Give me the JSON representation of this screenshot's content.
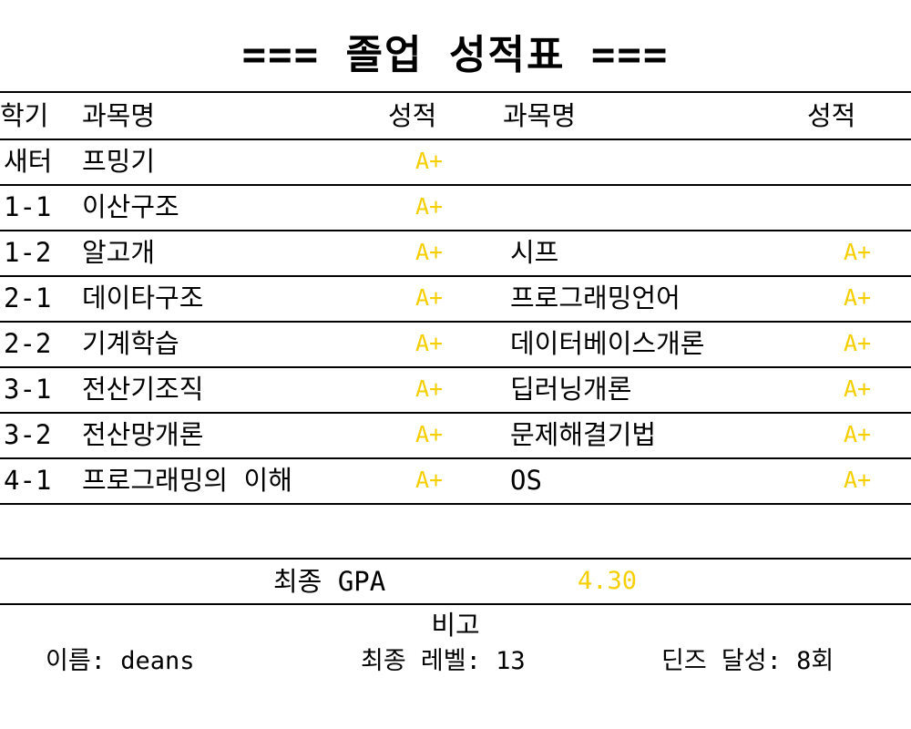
{
  "title": "=== 졸업 성적표 ===",
  "table": {
    "headers": {
      "semester": "학기",
      "subject1": "과목명",
      "grade1": "성적",
      "subject2": "과목명",
      "grade2": "성적"
    },
    "rows": [
      {
        "semester": "새터",
        "subject1": "프밍기",
        "grade1": "A+",
        "subject2": "",
        "grade2": ""
      },
      {
        "semester": "1-1",
        "subject1": "이산구조",
        "grade1": "A+",
        "subject2": "",
        "grade2": ""
      },
      {
        "semester": "1-2",
        "subject1": "알고개",
        "grade1": "A+",
        "subject2": "시프",
        "grade2": "A+"
      },
      {
        "semester": "2-1",
        "subject1": "데이타구조",
        "grade1": "A+",
        "subject2": "프로그래밍언어",
        "grade2": "A+"
      },
      {
        "semester": "2-2",
        "subject1": "기계학습",
        "grade1": "A+",
        "subject2": "데이터베이스개론",
        "grade2": "A+"
      },
      {
        "semester": "3-1",
        "subject1": "전산기조직",
        "grade1": "A+",
        "subject2": "딥러닝개론",
        "grade2": "A+"
      },
      {
        "semester": "3-2",
        "subject1": "전산망개론",
        "grade1": "A+",
        "subject2": "문제해결기법",
        "grade2": "A+"
      },
      {
        "semester": "4-1",
        "subject1": "프로그래밍의 이해",
        "grade1": "A+",
        "subject2": "OS",
        "grade2": "A+"
      }
    ]
  },
  "gpa": {
    "label": "최종 GPA",
    "value": "4.30"
  },
  "remarks": {
    "title": "비고",
    "name": "이름: deans",
    "level": "최종 레벨: 13",
    "deans": "딘즈 달성: 8회"
  },
  "colors": {
    "background": "#ffffff",
    "text": "#000000",
    "grade": "#f5cf00",
    "rule": "#000000"
  }
}
